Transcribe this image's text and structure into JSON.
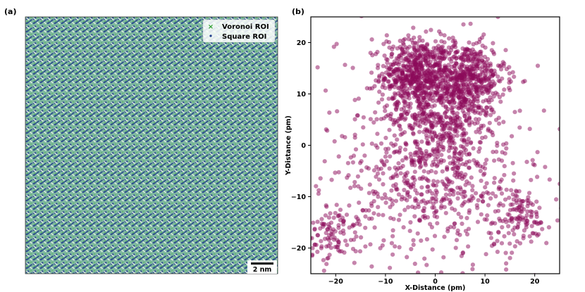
{
  "panel_a": {
    "label": "(a)",
    "legend": [
      {
        "label": "Voronoi ROI",
        "marker": "x",
        "color": "#2ca02c"
      },
      {
        "label": "Square ROI",
        "marker": "dot",
        "color": "#1f3d8a"
      }
    ],
    "scale_bar": "2 nm",
    "colors": {
      "background": "#7fb8a0",
      "light": "#e6f0e6",
      "dark": "#2f4f8f",
      "green": "#5cb85c"
    }
  },
  "chart_data": {
    "label": "(b)",
    "type": "scatter",
    "title": "",
    "xlabel": "X-Distance (pm)",
    "ylabel": "Y-Distance (pm)",
    "xlim": [
      -25,
      25
    ],
    "ylim": [
      -25,
      25
    ],
    "xticks": [
      -20,
      -10,
      0,
      10,
      20
    ],
    "yticks": [
      -20,
      -10,
      0,
      10,
      20
    ],
    "marker_color": "#8b0a5a",
    "marker_alpha": 0.5,
    "grid": false,
    "n_points": 2400,
    "clusters": [
      {
        "cx": -4,
        "cy": 14,
        "sx": 3.5,
        "sy": 3.5,
        "n": 550
      },
      {
        "cx": 6,
        "cy": 13,
        "sx": 4,
        "sy": 3.5,
        "n": 550
      },
      {
        "cx": 1,
        "cy": 5,
        "sx": 5,
        "sy": 4,
        "n": 300
      },
      {
        "cx": 0,
        "cy": -6,
        "sx": 8,
        "sy": 8,
        "n": 500
      },
      {
        "cx": -20,
        "cy": -17,
        "sx": 3,
        "sy": 3,
        "n": 120
      },
      {
        "cx": 17,
        "cy": -14,
        "sx": 3,
        "sy": 3,
        "n": 120
      },
      {
        "cx": 0,
        "cy": 0,
        "sx": 13,
        "sy": 13,
        "n": 260
      }
    ]
  }
}
